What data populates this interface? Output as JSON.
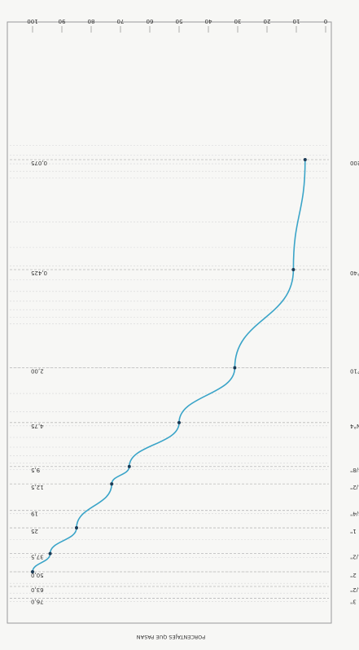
{
  "chart_data": {
    "type": "line",
    "orientation": "rotated-180",
    "xlabel": "PORCENTAJES QUE PASAN",
    "ylabel": "",
    "title": "",
    "percent_ticks": [
      "0",
      "10",
      "20",
      "30",
      "40",
      "50",
      "60",
      "70",
      "80",
      "90",
      "100"
    ],
    "ylim": [
      0,
      100
    ],
    "sizes_mm": [
      {
        "label": "0,075",
        "value": 0.075
      },
      {
        "label": "0,425",
        "value": 0.425
      },
      {
        "label": "2,00",
        "value": 2.0
      },
      {
        "label": "4,75",
        "value": 4.75
      },
      {
        "label": "9,5",
        "value": 9.5
      },
      {
        "label": "12,5",
        "value": 12.5
      },
      {
        "label": "19",
        "value": 19
      },
      {
        "label": "25",
        "value": 25
      },
      {
        "label": "37,5",
        "value": 37.5
      },
      {
        "label": "50,0",
        "value": 50.0
      },
      {
        "label": "63,0",
        "value": 63.0
      },
      {
        "label": "76,0",
        "value": 76.0
      }
    ],
    "sieve_labels": [
      {
        "label": "N°200",
        "value": 0.075
      },
      {
        "label": "N°40",
        "value": 0.425
      },
      {
        "label": "N°10",
        "value": 2.0
      },
      {
        "label": "N°4",
        "value": 4.75
      },
      {
        "label": "3/8\"",
        "value": 9.5
      },
      {
        "label": "1/2\"",
        "value": 12.5
      },
      {
        "label": "3/4\"",
        "value": 19
      },
      {
        "label": "1\"",
        "value": 25
      },
      {
        "label": "1-1/2\"",
        "value": 37.5
      },
      {
        "label": "2\"",
        "value": 50.0
      },
      {
        "label": "2-1/2\"",
        "value": 63.0
      },
      {
        "label": "3\"",
        "value": 76.0
      }
    ],
    "series": [
      {
        "x": [
          0.075,
          0.425,
          2.0,
          4.75,
          9.5,
          12.5,
          25,
          37.5,
          50.0
        ],
        "values": [
          7,
          11,
          31,
          50,
          67,
          73,
          85,
          94,
          100
        ],
        "color": "#3aa4c8"
      }
    ]
  }
}
